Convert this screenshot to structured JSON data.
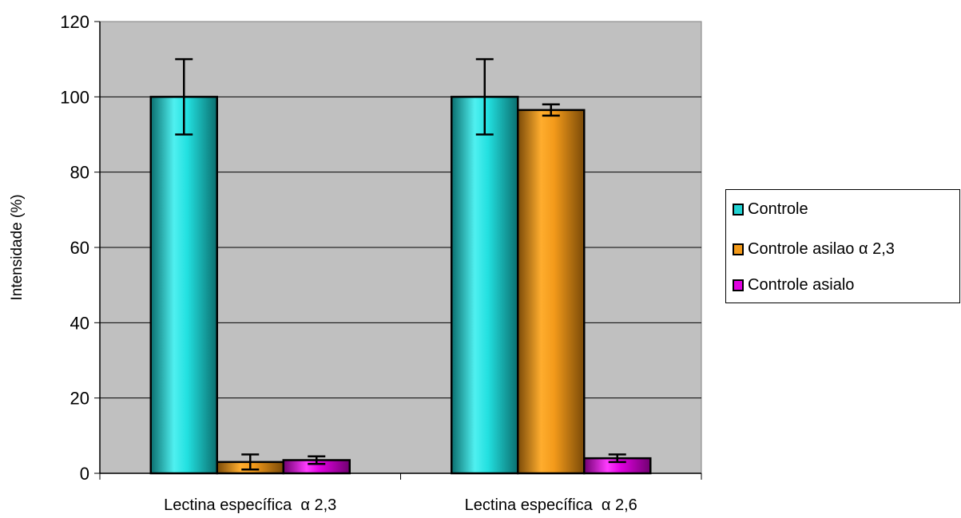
{
  "chart_data": {
    "type": "bar",
    "categories": [
      "Lectina específica  α 2,3",
      "Lectina específica  α 2,6"
    ],
    "series": [
      {
        "name": "Controle",
        "values": [
          100,
          100
        ],
        "errors": [
          10,
          10
        ],
        "color": "#22d3d3"
      },
      {
        "name": "Controle asilao  α 2,3",
        "values": [
          3,
          96.5
        ],
        "errors": [
          2,
          1.5
        ],
        "color": "#f39a1a"
      },
      {
        "name": "Controle asialo",
        "values": [
          3.5,
          4
        ],
        "errors": [
          1,
          1
        ],
        "color": "#e000e0"
      }
    ],
    "ylabel": "Intensidade (%)",
    "xlabel": "",
    "ylim": [
      0,
      120
    ],
    "yticks": [
      0,
      20,
      40,
      60,
      80,
      100,
      120
    ],
    "grid": true,
    "plot_background": "#c0c0c0",
    "legend_position": "right"
  }
}
